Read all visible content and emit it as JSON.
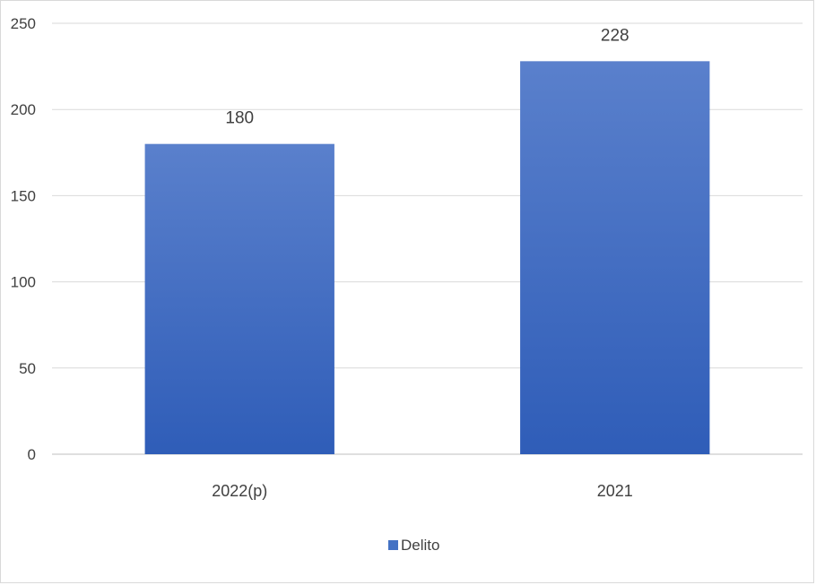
{
  "chart_data": {
    "type": "bar",
    "categories": [
      "2022(p)",
      "2021"
    ],
    "series": [
      {
        "name": "Delito",
        "values": [
          180,
          228
        ],
        "color": "#4472C4"
      }
    ],
    "ylim": [
      0,
      250
    ],
    "yticks": [
      0,
      50,
      100,
      150,
      200,
      250
    ],
    "grid": true,
    "legend": "bottom",
    "data_labels": [
      "180",
      "228"
    ],
    "colors": {
      "bar_top": "#5A80CC",
      "bar_bottom": "#2F5DB8",
      "grid": "#d9d9d9",
      "text": "#404040"
    }
  }
}
